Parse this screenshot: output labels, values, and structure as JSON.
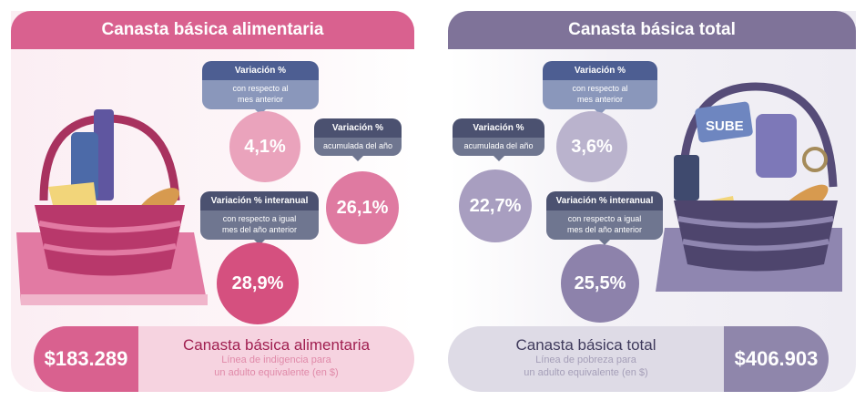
{
  "left": {
    "title": "Canasta básica alimentaria",
    "monthly": {
      "title": "Variación %",
      "subtitle_1": "con respecto al",
      "subtitle_2": "mes anterior",
      "value": "4,1%"
    },
    "accumulated": {
      "title": "Variación %",
      "subtitle": "acumulada del año",
      "value": "26,1%"
    },
    "yearly": {
      "title": "Variación % interanual",
      "subtitle_1": "con respecto a igual",
      "subtitle_2": "mes del año anterior",
      "value": "28,9%"
    },
    "summary": {
      "value": "$183.289",
      "name": "Canasta básica alimentaria",
      "line_1": "Línea de indigencia para",
      "line_2": "un adulto equivalente (en $)"
    }
  },
  "right": {
    "title": "Canasta básica total",
    "monthly": {
      "title": "Variación %",
      "subtitle_1": "con respecto al",
      "subtitle_2": "mes anterior",
      "value": "3,6%"
    },
    "accumulated": {
      "title": "Variación %",
      "subtitle": "acumulada del año",
      "value": "22,7%"
    },
    "yearly": {
      "title": "Variación % interanual",
      "subtitle_1": "con respecto a igual",
      "subtitle_2": "mes del año anterior",
      "value": "25,5%"
    },
    "summary": {
      "value": "$406.903",
      "name": "Canasta básica total",
      "line_1": "Línea de pobreza para",
      "line_2": "un adulto equivalente (en $)"
    },
    "card_label": "SUBE"
  },
  "colors": {
    "pink": "#d9618f",
    "purple": "#7f7399"
  }
}
